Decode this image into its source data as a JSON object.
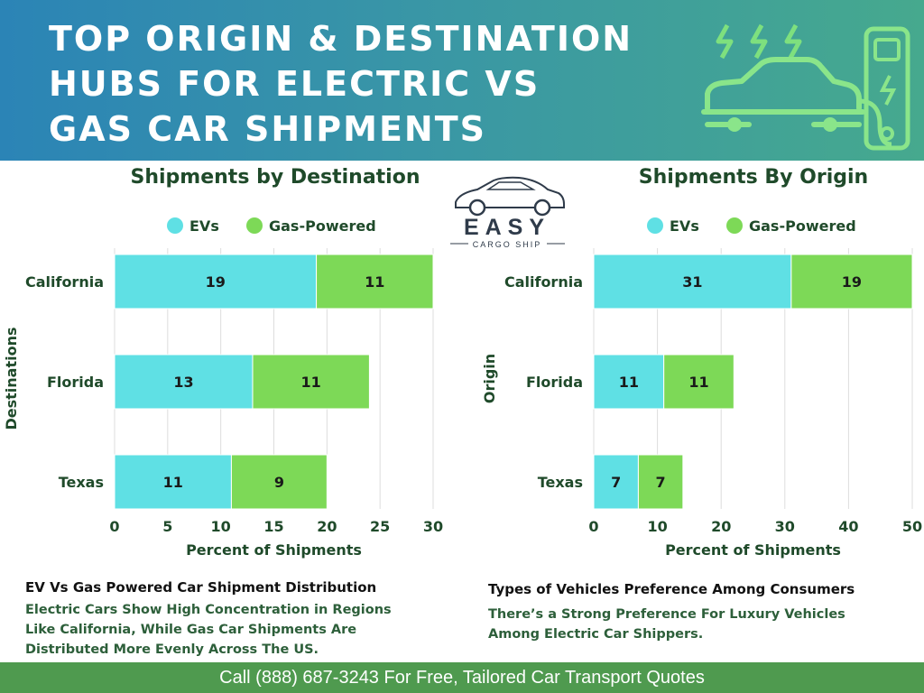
{
  "header": {
    "title_lines": [
      "TOP ORIGIN & DESTINATION",
      "HUBS FOR ELECTRIC VS",
      "GAS CAR SHIPMENTS"
    ],
    "illustration_icon": "ev-charging-car-icon"
  },
  "logo": {
    "brand": "EASY",
    "tagline": "CARGO SHIP",
    "icon": "car-silhouette-icon"
  },
  "colors": {
    "ev": "#5fe0e4",
    "gas": "#7dd957",
    "title_green": "#1f4a2a",
    "footer_green": "#4f9a4f"
  },
  "chart_data": [
    {
      "type": "bar",
      "orientation": "horizontal",
      "stacked": true,
      "title": "Shipments by Destination",
      "ylabel": "Destinations",
      "xlabel": "Percent of Shipments",
      "categories": [
        "California",
        "Florida",
        "Texas"
      ],
      "series": [
        {
          "name": "EVs",
          "values": [
            19,
            13,
            11
          ]
        },
        {
          "name": "Gas-Powered",
          "values": [
            11,
            11,
            9
          ]
        }
      ],
      "xlim": [
        0,
        30
      ],
      "xticks": [
        0,
        5,
        10,
        15,
        20,
        25,
        30
      ],
      "legend": "top",
      "grid": true
    },
    {
      "type": "bar",
      "orientation": "horizontal",
      "stacked": true,
      "title": "Shipments By Origin",
      "ylabel": "Origin",
      "xlabel": "Percent of Shipments",
      "categories": [
        "California",
        "Florida",
        "Texas"
      ],
      "series": [
        {
          "name": "EVs",
          "values": [
            31,
            11,
            7
          ]
        },
        {
          "name": "Gas-Powered",
          "values": [
            19,
            11,
            7
          ]
        }
      ],
      "xlim": [
        0,
        50
      ],
      "xticks": [
        0,
        10,
        20,
        30,
        40,
        50
      ],
      "legend": "top",
      "grid": true
    }
  ],
  "notes": {
    "left": {
      "title": "EV Vs Gas Powered Car Shipment Distribution",
      "lines": [
        "Electric Cars Show High Concentration in Regions",
        "Like California, While Gas Car Shipments Are",
        "Distributed More Evenly Across The US."
      ]
    },
    "right": {
      "title": "Types of Vehicles Preference Among Consumers",
      "lines": [
        "There’s a Strong Preference For Luxury Vehicles",
        "Among Electric Car Shippers."
      ]
    }
  },
  "footer": {
    "text": "Call (888) 687-3243 For Free, Tailored Car Transport Quotes"
  }
}
